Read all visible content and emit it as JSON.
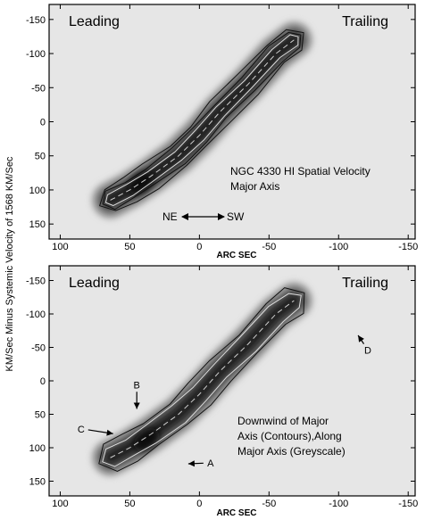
{
  "figure": {
    "y_axis_label": "KM/Sec Minus Systemic Velocity of 1568 KM/Sec"
  },
  "chart_data": [
    {
      "type": "heatmap",
      "xlabel": "ARC SEC",
      "x_ticks": [
        100,
        50,
        0,
        -50,
        -100,
        -150
      ],
      "y_ticks": [
        -150,
        -100,
        -50,
        0,
        50,
        100,
        150
      ],
      "xlim": [
        108,
        -155
      ],
      "ylim": [
        -172,
        172
      ],
      "corner_left": "Leading",
      "corner_right": "Trailing",
      "annotation_lines": [
        "NGC 4330 HI Spatial Velocity",
        "Major Axis"
      ],
      "direction": {
        "left": "NE",
        "right": "SW"
      },
      "ridge": {
        "x": [
          64,
          50,
          35,
          15,
          0,
          -15,
          -35,
          -55,
          -68
        ],
        "y": [
          115,
          100,
          80,
          50,
          20,
          -15,
          -55,
          -100,
          -120
        ]
      },
      "contour_half_widths": [
        30,
        21,
        13
      ],
      "peak_blob": {
        "x": 42,
        "y": 90
      },
      "markers": []
    },
    {
      "type": "heatmap",
      "xlabel": "ARC SEC",
      "x_ticks": [
        100,
        50,
        0,
        -50,
        -100,
        -150
      ],
      "y_ticks": [
        -150,
        -100,
        -50,
        0,
        50,
        100,
        150
      ],
      "xlim": [
        108,
        -155
      ],
      "ylim": [
        -172,
        172
      ],
      "corner_left": "Leading",
      "corner_right": "Trailing",
      "annotation_lines": [
        "Downwind of Major",
        "Axis (Contours),Along",
        "Major Axis (Greyscale)"
      ],
      "ridge": {
        "x": [
          64,
          50,
          35,
          15,
          0,
          -15,
          -35,
          -55,
          -68
        ],
        "y": [
          115,
          100,
          80,
          50,
          20,
          -15,
          -55,
          -100,
          -120
        ]
      },
      "contour_half_widths": [
        32,
        22
      ],
      "peak_blob": {
        "x": 38,
        "y": 88
      },
      "markers": [
        {
          "label": "A",
          "text_x": -8,
          "text_y": 128,
          "arrow_to_x": 8,
          "arrow_to_y": 124
        },
        {
          "label": "B",
          "text_x": 45,
          "text_y": 11,
          "arrow_to_x": 45,
          "arrow_to_y": 42
        },
        {
          "label": "C",
          "text_x": 85,
          "text_y": 77,
          "arrow_to_x": 62,
          "arrow_to_y": 79
        },
        {
          "label": "D",
          "text_x": -121,
          "text_y": -41,
          "arrow_to_x": -114,
          "arrow_to_y": -68
        }
      ]
    }
  ],
  "colors": {
    "background_grey": "#e6e6e6",
    "dense_core": "#1e1e1e",
    "contour_line": "#111111"
  }
}
